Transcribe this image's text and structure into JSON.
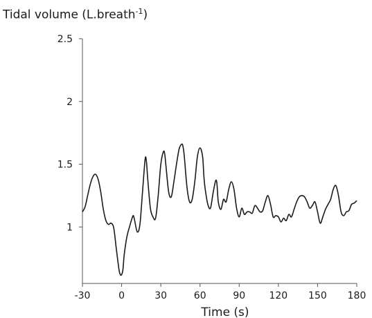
{
  "chart_data": {
    "type": "line",
    "title": "",
    "ylabel_main": "Tidal volume (L.breath",
    "ylabel_exp": "-1",
    "ylabel_close": ")",
    "xlabel": "Time (s)",
    "xlim": [
      -30,
      180
    ],
    "ylim": [
      0.55,
      2.5
    ],
    "xticks": [
      "-30",
      "0",
      "30",
      "60",
      "90",
      "120",
      "150",
      "180"
    ],
    "yticks": [
      "1",
      "1.5",
      "2",
      "2.5"
    ],
    "grid": false,
    "legend": "none",
    "series": [
      {
        "color": "#1a1a1a",
        "x": [
          -30,
          -28,
          -26,
          -24,
          -22,
          -20,
          -18,
          -16,
          -14,
          -12,
          -10,
          -8,
          -6,
          -4,
          -2,
          -1,
          0,
          1,
          2,
          4,
          6,
          8,
          9,
          10,
          12,
          14,
          16,
          18,
          19,
          20,
          22,
          24,
          26,
          28,
          30,
          32,
          33,
          34,
          36,
          38,
          40,
          42,
          44,
          46,
          47,
          48,
          50,
          52,
          54,
          56,
          58,
          60,
          62,
          63,
          64,
          66,
          68,
          70,
          72,
          73,
          74,
          76,
          78,
          80,
          82,
          84,
          86,
          88,
          90,
          92,
          94,
          96,
          98,
          100,
          102,
          104,
          106,
          108,
          110,
          112,
          114,
          116,
          118,
          120,
          122,
          124,
          126,
          128,
          130,
          132,
          134,
          136,
          138,
          140,
          142,
          144,
          146,
          148,
          150,
          152,
          154,
          156,
          158,
          160,
          162,
          164,
          166,
          168,
          170,
          172,
          174,
          176,
          178,
          180
        ],
        "y": [
          1.12,
          1.16,
          1.25,
          1.34,
          1.4,
          1.42,
          1.38,
          1.28,
          1.14,
          1.05,
          1.02,
          1.03,
          0.99,
          0.82,
          0.66,
          0.62,
          0.62,
          0.66,
          0.78,
          0.92,
          1.0,
          1.07,
          1.09,
          1.05,
          0.96,
          1.02,
          1.28,
          1.54,
          1.52,
          1.38,
          1.15,
          1.08,
          1.07,
          1.25,
          1.5,
          1.6,
          1.58,
          1.48,
          1.28,
          1.24,
          1.36,
          1.5,
          1.62,
          1.66,
          1.64,
          1.56,
          1.32,
          1.2,
          1.22,
          1.36,
          1.56,
          1.63,
          1.56,
          1.4,
          1.3,
          1.18,
          1.15,
          1.27,
          1.37,
          1.34,
          1.2,
          1.14,
          1.22,
          1.2,
          1.3,
          1.36,
          1.3,
          1.15,
          1.08,
          1.15,
          1.1,
          1.12,
          1.12,
          1.11,
          1.17,
          1.15,
          1.12,
          1.13,
          1.2,
          1.25,
          1.18,
          1.08,
          1.09,
          1.08,
          1.04,
          1.07,
          1.05,
          1.1,
          1.08,
          1.14,
          1.2,
          1.24,
          1.25,
          1.24,
          1.2,
          1.15,
          1.17,
          1.2,
          1.12,
          1.03,
          1.08,
          1.14,
          1.18,
          1.22,
          1.3,
          1.33,
          1.25,
          1.12,
          1.09,
          1.12,
          1.13,
          1.18,
          1.19,
          1.21
        ]
      }
    ]
  }
}
